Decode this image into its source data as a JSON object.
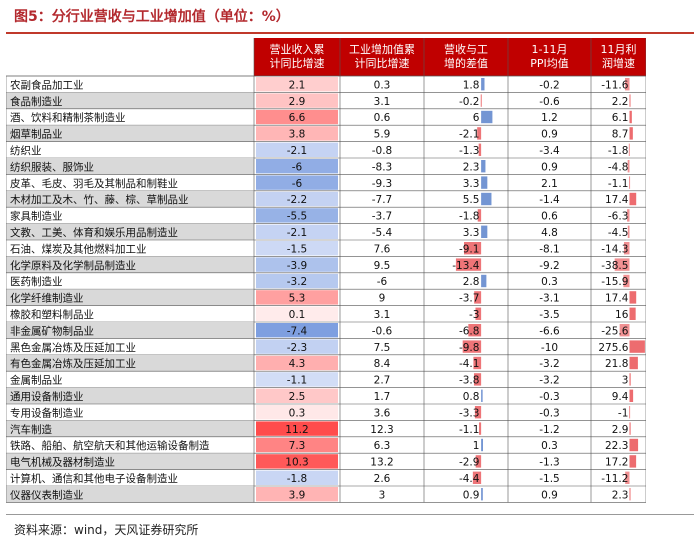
{
  "title": "图5：分行业营收与工业增加值（单位：%）",
  "source": "资料来源：wind，天风证券研究所",
  "colors": {
    "header_bg": "#c00000",
    "header_text": "#ffffff",
    "row_gray": "#d9d9d9",
    "positive_bar": "#e8474b",
    "negative_bar": "#4472c4"
  },
  "chart_data": {
    "type": "table",
    "columns": [
      "",
      "营业收入累计同比增速",
      "工业增加值累计同比增速",
      "营收与工增的差值",
      "1-11月PPI均值",
      "11月利润增速"
    ],
    "rows": [
      {
        "industry": "农副食品加工业",
        "values": [
          2.1,
          0.3,
          1.8,
          -0.2,
          -11.6
        ],
        "gray": false
      },
      {
        "industry": "食品制造业",
        "values": [
          2.9,
          3.1,
          -0.2,
          -0.6,
          2.2
        ],
        "gray": true
      },
      {
        "industry": "酒、饮料和精制茶制造业",
        "values": [
          6.6,
          0.6,
          6,
          1.2,
          6.1
        ],
        "gray": false
      },
      {
        "industry": "烟草制品业",
        "values": [
          3.8,
          5.9,
          -2.1,
          0.9,
          8.7
        ],
        "gray": true
      },
      {
        "industry": "纺织业",
        "values": [
          -2.1,
          -0.8,
          -1.3,
          -3.4,
          -1.8
        ],
        "gray": false
      },
      {
        "industry": "纺织服装、服饰业",
        "values": [
          -6,
          -8.3,
          2.3,
          0.9,
          -4.8
        ],
        "gray": true
      },
      {
        "industry": "皮革、毛皮、羽毛及其制品和制鞋业",
        "values": [
          -6,
          -9.3,
          3.3,
          2.1,
          -1.1
        ],
        "gray": false
      },
      {
        "industry": "木材加工及木、竹、藤、棕、草制品业",
        "values": [
          -2.2,
          -7.7,
          5.5,
          -1.4,
          17.4
        ],
        "gray": true
      },
      {
        "industry": "家具制造业",
        "values": [
          -5.5,
          -3.7,
          -1.8,
          0.6,
          -6.3
        ],
        "gray": false
      },
      {
        "industry": "文教、工美、体育和娱乐用品制造业",
        "values": [
          -2.1,
          -5.4,
          3.3,
          4.8,
          -4.5
        ],
        "gray": true
      },
      {
        "industry": "石油、煤炭及其他燃料加工业",
        "values": [
          -1.5,
          7.6,
          -9.1,
          -8.1,
          -14.3
        ],
        "gray": false
      },
      {
        "industry": "化学原料及化学制品制造业",
        "values": [
          -3.9,
          9.5,
          -13.4,
          -9.2,
          -38.5
        ],
        "gray": true
      },
      {
        "industry": "医药制造业",
        "values": [
          -3.2,
          -6,
          2.8,
          0.3,
          -15.9
        ],
        "gray": false
      },
      {
        "industry": "化学纤维制造业",
        "values": [
          5.3,
          9,
          -3.7,
          -3.1,
          17.4
        ],
        "gray": true
      },
      {
        "industry": "橡胶和塑料制品业",
        "values": [
          0.1,
          3.1,
          -3,
          -3.5,
          16.0
        ],
        "gray": false
      },
      {
        "industry": "非金属矿物制品业",
        "values": [
          -7.4,
          -0.6,
          -6.8,
          -6.6,
          -25.6
        ],
        "gray": true
      },
      {
        "industry": "黑色金属冶炼及压延加工业",
        "values": [
          -2.3,
          7.5,
          -9.8,
          -10.0,
          275.6
        ],
        "gray": false
      },
      {
        "industry": "有色金属冶炼及压延加工业",
        "values": [
          4.3,
          8.4,
          -4.1,
          -3.2,
          21.8
        ],
        "gray": true
      },
      {
        "industry": "金属制品业",
        "values": [
          -1.1,
          2.7,
          -3.8,
          -3.2,
          3.0
        ],
        "gray": false
      },
      {
        "industry": "通用设备制造业",
        "values": [
          2.5,
          1.7,
          0.8,
          -0.3,
          9.4
        ],
        "gray": true
      },
      {
        "industry": "专用设备制造业",
        "values": [
          0.3,
          3.6,
          -3.3,
          -0.3,
          -1.0
        ],
        "gray": false
      },
      {
        "industry": "汽车制造",
        "values": [
          11.2,
          12.3,
          -1.1,
          -1.2,
          2.9
        ],
        "gray": true
      },
      {
        "industry": "铁路、船舶、航空航天和其他运输设备制造",
        "values": [
          7.3,
          6.3,
          1,
          0.3,
          22.3
        ],
        "gray": false
      },
      {
        "industry": "电气机械及器材制造业",
        "values": [
          10.3,
          13.2,
          -2.9,
          -1.3,
          17.2
        ],
        "gray": true
      },
      {
        "industry": "计算机、通信和其他电子设备制造业",
        "values": [
          -1.8,
          2.6,
          -4.4,
          -1.5,
          -11.2
        ],
        "gray": false
      },
      {
        "industry": "仪器仪表制造业",
        "values": [
          3.9,
          3,
          0.9,
          0.9,
          2.3
        ],
        "gray": true
      }
    ]
  }
}
